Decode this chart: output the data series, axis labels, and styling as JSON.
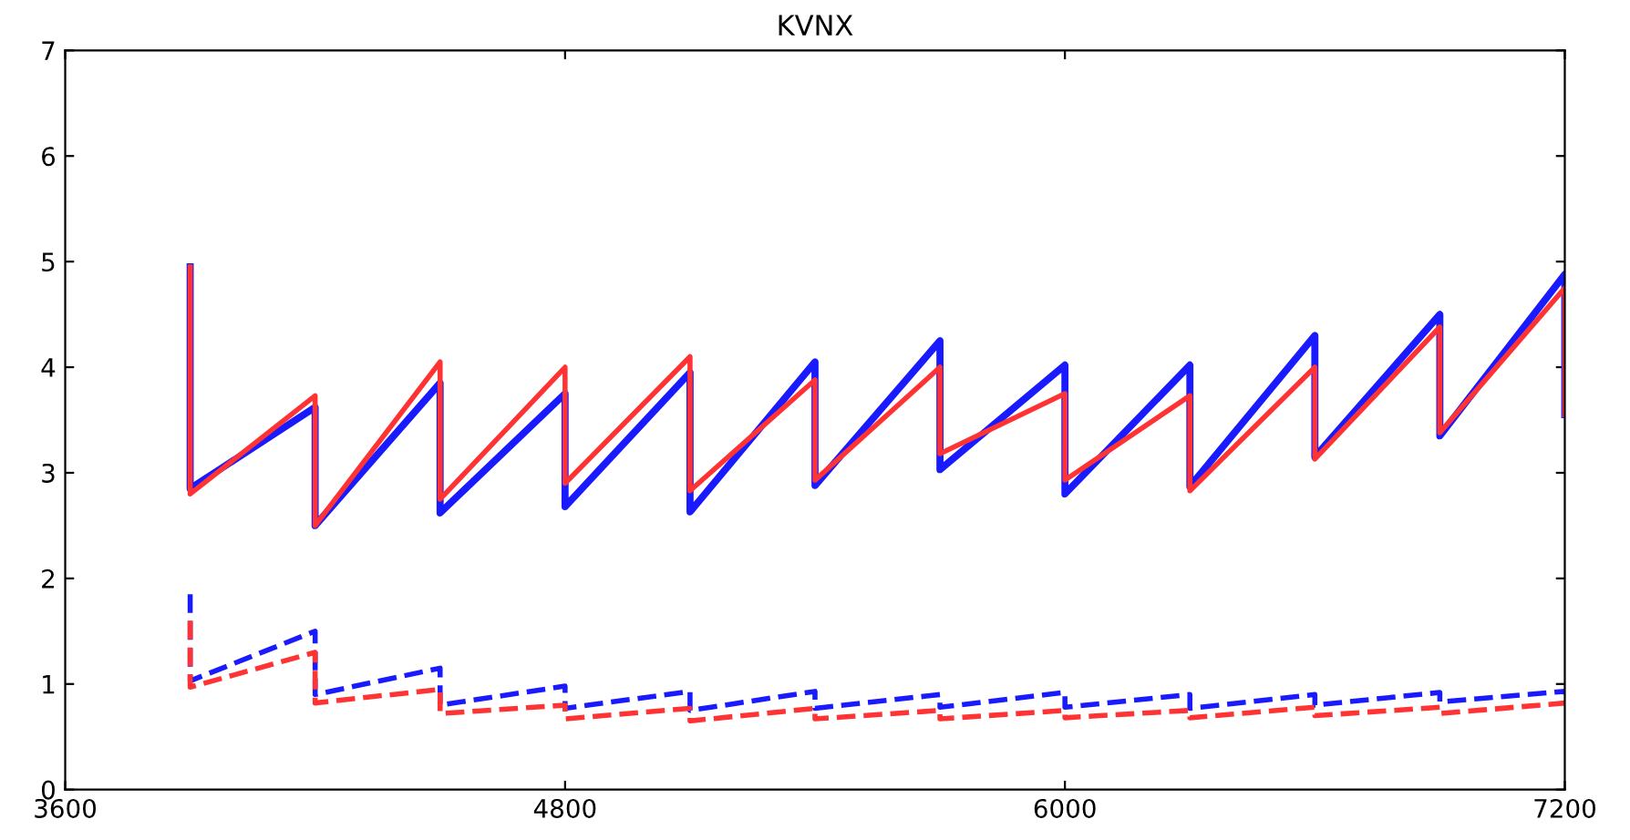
{
  "chart_data": {
    "type": "line",
    "title": "KVNX",
    "x": [
      3900,
      3900,
      4200,
      4200,
      4500,
      4500,
      4800,
      4800,
      5100,
      5100,
      5400,
      5400,
      5700,
      5700,
      6000,
      6000,
      6300,
      6300,
      6600,
      6600,
      6900,
      6900,
      7200,
      7200
    ],
    "series": [
      {
        "color": "#1a1aff",
        "line_style": "solid",
        "values": [
          4.95,
          2.85,
          3.62,
          2.5,
          3.85,
          2.62,
          3.75,
          2.68,
          3.95,
          2.63,
          4.05,
          2.88,
          4.25,
          3.03,
          4.02,
          2.8,
          4.02,
          2.87,
          4.3,
          3.15,
          4.5,
          3.35,
          4.88,
          3.55
        ]
      },
      {
        "color": "#ff3333",
        "line_style": "solid",
        "values": [
          4.95,
          2.8,
          3.73,
          2.5,
          4.05,
          2.75,
          4.0,
          2.9,
          4.1,
          2.83,
          3.88,
          2.93,
          4.0,
          3.18,
          3.75,
          2.93,
          3.73,
          2.83,
          4.0,
          3.13,
          4.38,
          3.38,
          4.75,
          3.55
        ]
      },
      {
        "color": "#1a1aff",
        "line_style": "dashed",
        "values": [
          1.85,
          1.03,
          1.5,
          0.9,
          1.15,
          0.8,
          0.98,
          0.77,
          0.93,
          0.75,
          0.93,
          0.77,
          0.9,
          0.78,
          0.92,
          0.78,
          0.9,
          0.77,
          0.9,
          0.8,
          0.92,
          0.83,
          0.93,
          0.9
        ]
      },
      {
        "color": "#ff3333",
        "line_style": "dashed",
        "values": [
          1.6,
          0.97,
          1.3,
          0.82,
          0.95,
          0.72,
          0.8,
          0.67,
          0.77,
          0.65,
          0.77,
          0.67,
          0.75,
          0.67,
          0.75,
          0.68,
          0.75,
          0.68,
          0.78,
          0.7,
          0.78,
          0.72,
          0.82,
          0.82
        ]
      }
    ],
    "xlim": [
      3600,
      7200
    ],
    "xticks": [
      3600,
      4800,
      6000,
      7200
    ],
    "ylim": [
      0,
      7
    ],
    "yticks": [
      0,
      1,
      2,
      3,
      4,
      5,
      6,
      7
    ],
    "grid": false,
    "legend": false
  }
}
